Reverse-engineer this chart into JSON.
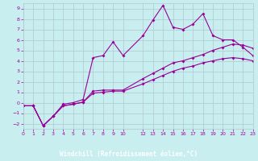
{
  "xlabel": "Windchill (Refroidissement éolien,°C)",
  "xlim": [
    0,
    23
  ],
  "ylim": [
    -2.5,
    9.5
  ],
  "xticks": [
    0,
    1,
    2,
    3,
    4,
    5,
    6,
    7,
    8,
    9,
    10,
    12,
    13,
    14,
    15,
    16,
    17,
    18,
    19,
    20,
    21,
    22,
    23
  ],
  "yticks": [
    -2,
    -1,
    0,
    1,
    2,
    3,
    4,
    5,
    6,
    7,
    8,
    9
  ],
  "bg_color": "#c8eef0",
  "axis_label_bg": "#660066",
  "axis_label_fg": "#ffffff",
  "line_color": "#990099",
  "grid_color": "#b0c8d0",
  "line1_x": [
    0,
    1,
    2,
    3,
    4,
    5,
    6,
    7,
    8,
    9,
    10,
    12,
    13,
    14,
    15,
    16,
    17,
    18,
    19,
    20,
    21,
    22,
    23
  ],
  "line1_y": [
    -0.3,
    -0.3,
    -2.2,
    -1.3,
    -0.3,
    -0.15,
    0.05,
    0.9,
    1.0,
    1.1,
    1.1,
    1.8,
    2.2,
    2.6,
    3.0,
    3.3,
    3.5,
    3.8,
    4.0,
    4.2,
    4.3,
    4.2,
    4.0
  ],
  "line2_x": [
    0,
    1,
    2,
    3,
    4,
    5,
    6,
    7,
    8,
    9,
    10,
    12,
    13,
    14,
    15,
    16,
    17,
    18,
    19,
    20,
    21,
    22,
    23
  ],
  "line2_y": [
    -0.3,
    -0.3,
    -2.2,
    -1.3,
    -0.15,
    0.0,
    0.3,
    4.3,
    4.5,
    5.8,
    4.5,
    6.4,
    7.9,
    9.3,
    7.2,
    7.0,
    7.5,
    8.5,
    6.4,
    6.0,
    6.0,
    5.3,
    4.5
  ],
  "line3_x": [
    0,
    1,
    2,
    3,
    4,
    5,
    6,
    7,
    8,
    9,
    10,
    12,
    13,
    14,
    15,
    16,
    17,
    18,
    19,
    20,
    21,
    22,
    23
  ],
  "line3_y": [
    -0.3,
    -0.3,
    -2.2,
    -1.3,
    -0.3,
    -0.15,
    0.05,
    1.1,
    1.2,
    1.2,
    1.2,
    2.3,
    2.8,
    3.3,
    3.8,
    4.0,
    4.3,
    4.6,
    5.0,
    5.3,
    5.6,
    5.5,
    5.2
  ]
}
